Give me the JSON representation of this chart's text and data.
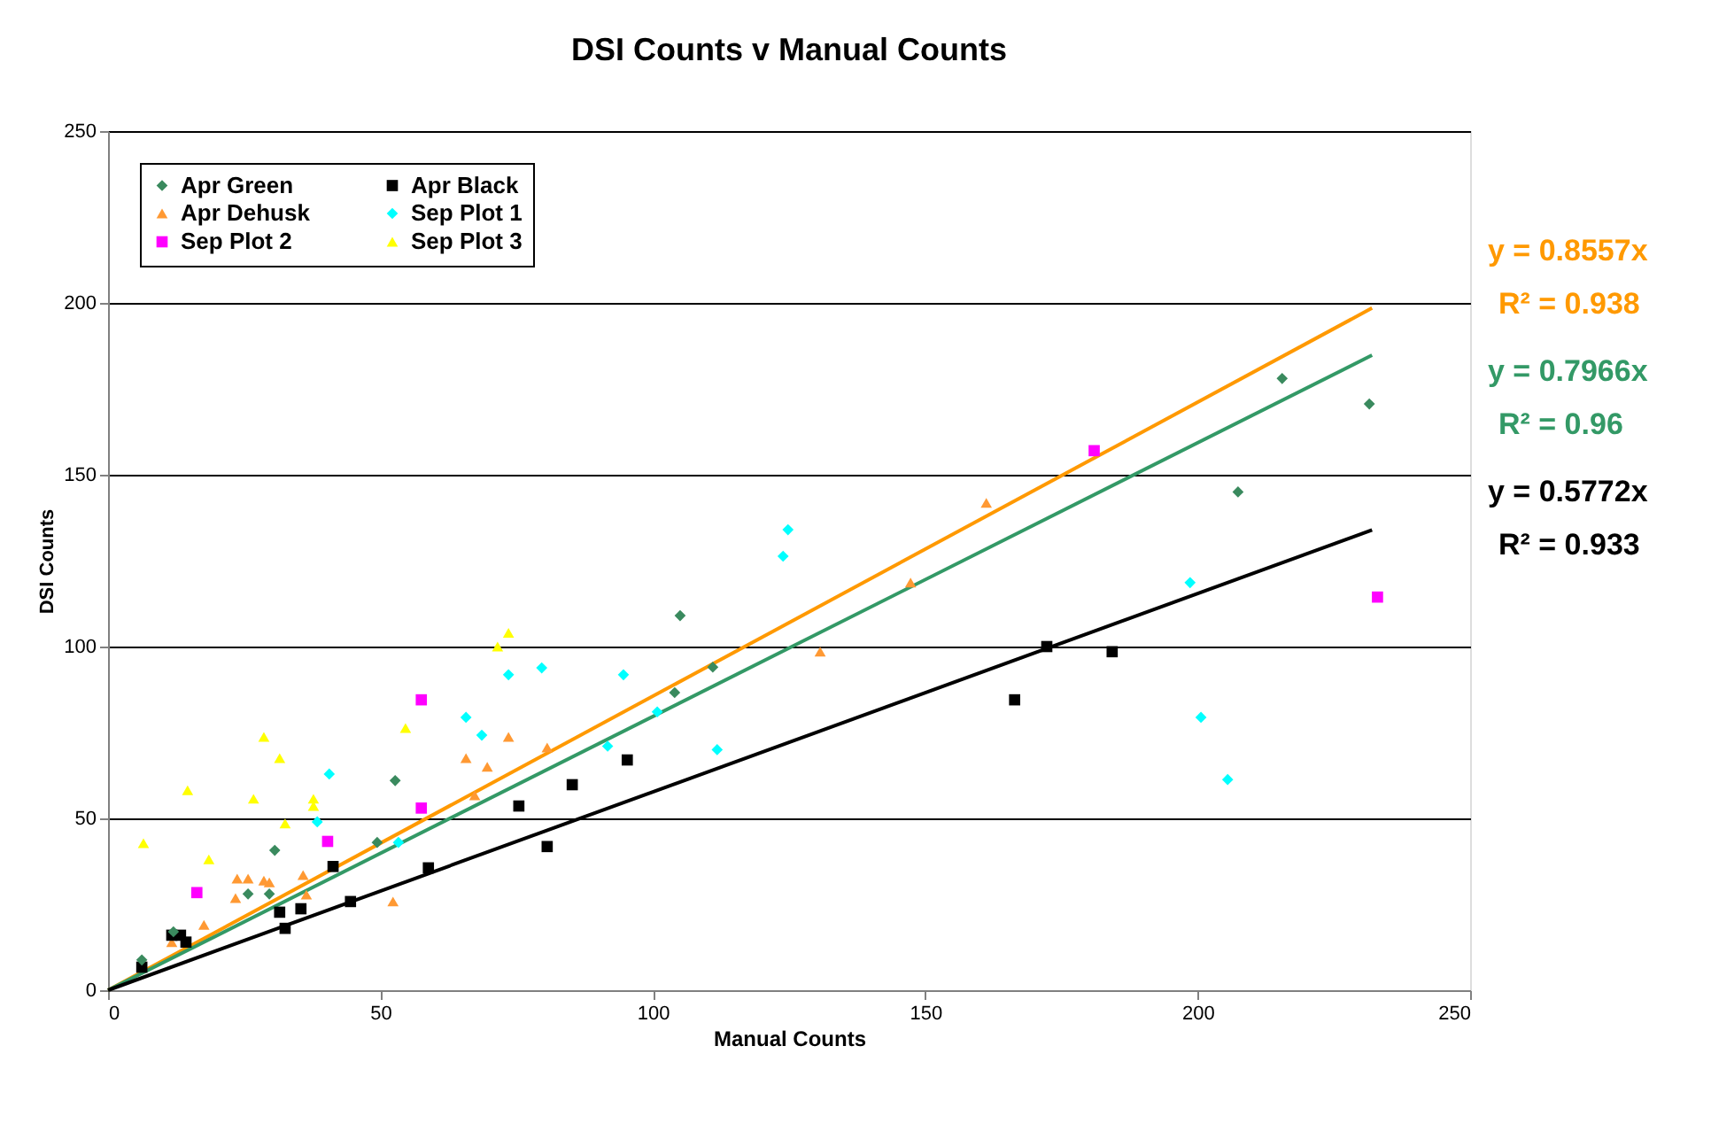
{
  "chart_data": {
    "type": "scatter",
    "title": "DSI Counts v Manual Counts",
    "xlabel": "Manual Counts",
    "ylabel": "DSI Counts",
    "xlim": [
      0,
      250
    ],
    "ylim": [
      0,
      250
    ],
    "xticks": [
      0,
      50,
      100,
      150,
      200,
      250
    ],
    "yticks": [
      0,
      50,
      100,
      150,
      200,
      250
    ],
    "grid": "y",
    "legend": "top left",
    "series": [
      {
        "name": "Apr Green",
        "marker": "diamond",
        "color": "#3a8a5e",
        "x": [
          6.2,
          12,
          25.7,
          29.6,
          30.6,
          49.4,
          52.7,
          104,
          111,
          105,
          215.5,
          231.5,
          207.4
        ],
        "values": [
          8.8,
          17,
          28,
          28,
          40.7,
          43,
          61,
          86.6,
          94,
          109,
          178,
          170.6,
          145
        ]
      },
      {
        "name": "Apr Black",
        "marker": "square",
        "color": "#000000",
        "x": [
          6.2,
          11.7,
          13.3,
          14.3,
          31.5,
          32.5,
          35.4,
          44.5,
          41.3,
          58.8,
          75.4,
          80.6,
          85.2,
          95.3,
          166.4,
          172.3,
          184.3
        ],
        "values": [
          6.7,
          16,
          16,
          14,
          22.7,
          18,
          23.7,
          25.8,
          36,
          35.6,
          53.6,
          41.8,
          59.8,
          67,
          84.5,
          100,
          98.5
        ]
      },
      {
        "name": "Apr Dehusk",
        "marker": "triangle",
        "color": "#ff9933",
        "x": [
          11.7,
          17.6,
          23.4,
          23.7,
          25.7,
          28.6,
          29.6,
          35.8,
          36.4,
          52.3,
          65.7,
          69.6,
          73.5,
          80.6,
          67.3,
          130.7,
          147.3,
          161.2
        ],
        "values": [
          14,
          19,
          26.8,
          32.5,
          32.5,
          31.9,
          31.4,
          33.5,
          27.8,
          25.8,
          67.5,
          65,
          73.7,
          70.6,
          56.7,
          98.5,
          118.6,
          141.8
        ]
      },
      {
        "name": "Sep Plot 1",
        "marker": "diamond",
        "color": "#00ffff",
        "x": [
          40.6,
          38.4,
          53.3,
          65.7,
          68.6,
          73.5,
          79.6,
          94.6,
          91.7,
          100.8,
          111.8,
          123.9,
          124.8,
          198.6,
          200.6,
          205.5
        ],
        "values": [
          62.9,
          49,
          43,
          79.4,
          74.2,
          91.8,
          93.8,
          91.8,
          71,
          81,
          70,
          126.3,
          134,
          118.6,
          79.4,
          61.3
        ]
      },
      {
        "name": "Sep Plot 2",
        "marker": "square",
        "color": "#ff00ff",
        "x": [
          57.5,
          57.5,
          40.3,
          16.3,
          181,
          233
        ],
        "values": [
          84.5,
          53,
          43.3,
          28.4,
          157,
          114.4
        ]
      },
      {
        "name": "Sep Plot 3",
        "marker": "triangle",
        "color": "#ffff00",
        "x": [
          6.5,
          14.6,
          18.5,
          26.7,
          28.6,
          31.5,
          32.5,
          37.7,
          37.7,
          54.6,
          71.5,
          73.5
        ],
        "values": [
          42.8,
          58.2,
          38.1,
          55.7,
          73.7,
          67.5,
          48.5,
          55.7,
          53.6,
          76.3,
          100,
          104
        ]
      },
      {
        "type": "line",
        "line_style": "solid",
        "color": "#ff9900",
        "x": [
          0,
          232
        ],
        "values": [
          0,
          198.5
        ]
      },
      {
        "type": "line",
        "line_style": "solid",
        "color": "#339966",
        "x": [
          0,
          232
        ],
        "values": [
          0,
          184.8
        ]
      },
      {
        "type": "line",
        "line_style": "solid",
        "color": "#000000",
        "x": [
          0,
          232
        ],
        "values": [
          0,
          133.9
        ]
      }
    ],
    "annotations": [
      "y = 0.8557x",
      "R² = 0.938",
      "y = 0.7966x",
      "R² = 0.96",
      "y = 0.5772x",
      "R² = 0.933"
    ]
  }
}
